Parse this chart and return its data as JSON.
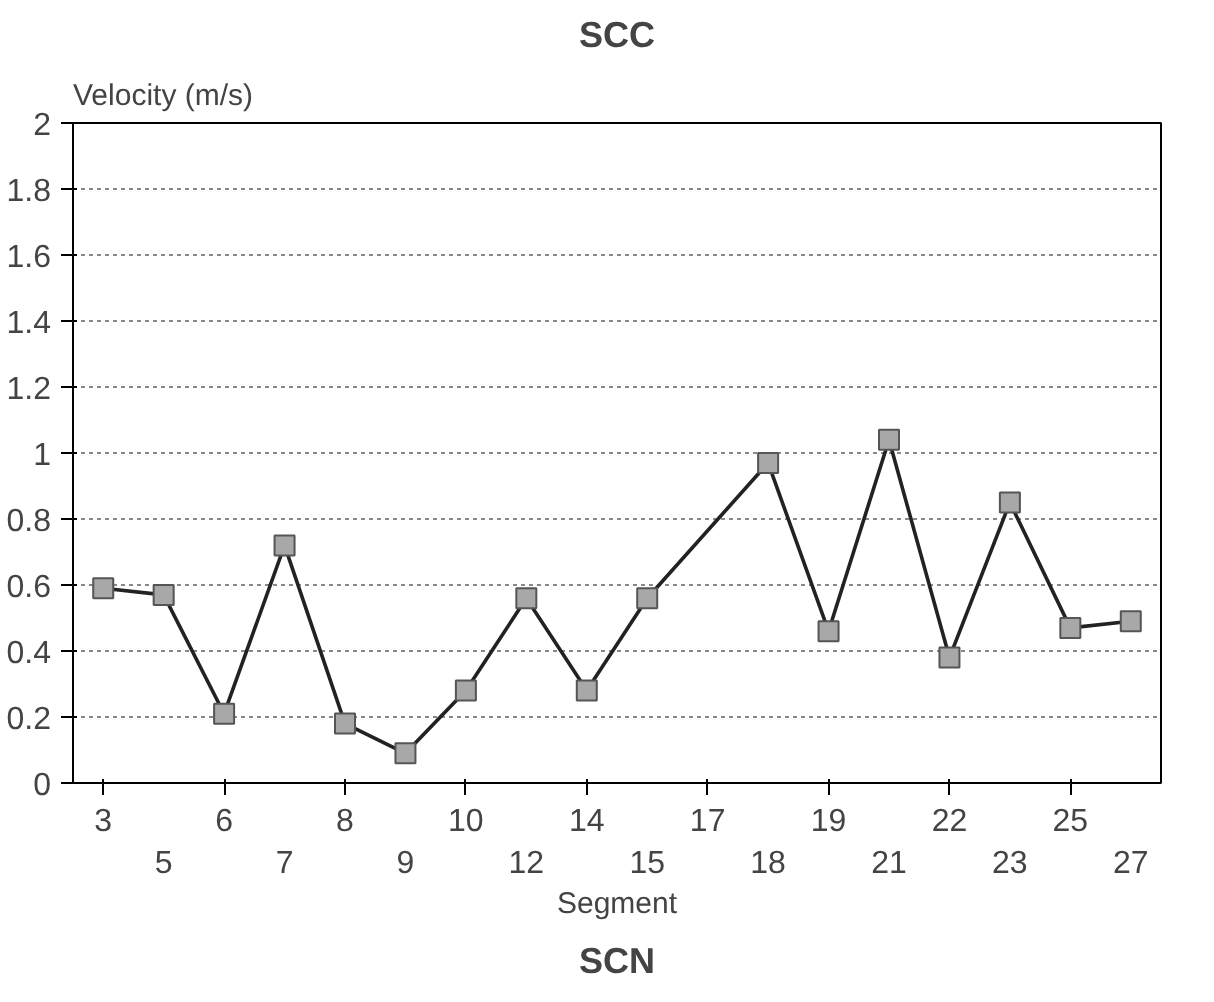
{
  "chart_data": {
    "type": "line",
    "title": "SCC",
    "ylabel": "Velocity (m/s)",
    "xlabel": "Segment",
    "annotations": [
      "SCN"
    ],
    "categories": [
      "3",
      "5",
      "6",
      "7",
      "8",
      "9",
      "10",
      "12",
      "14",
      "15",
      "17",
      "18",
      "19",
      "21",
      "22",
      "23",
      "25",
      "27"
    ],
    "series": [
      {
        "color": "#222222",
        "values": [
          0.59,
          0.57,
          0.21,
          0.72,
          0.18,
          0.09,
          0.28,
          0.56,
          0.28,
          0.56,
          null,
          0.97,
          0.46,
          1.04,
          0.38,
          0.85,
          0.47,
          0.49
        ]
      }
    ],
    "ylim": [
      0,
      2
    ],
    "yticks": [
      0,
      0.2,
      0.4,
      0.6,
      0.8,
      1,
      1.2,
      1.4,
      1.6,
      1.8,
      2
    ],
    "grid": "y",
    "marker": "square",
    "line_style": "solid"
  }
}
